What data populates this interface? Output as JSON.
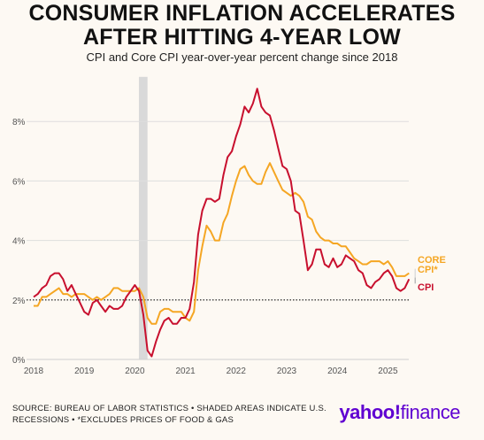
{
  "header": {
    "title_line1": "CONSUMER INFLATION ACCELERATES",
    "title_line2": "AFTER HITTING 4-YEAR LOW",
    "subtitle": "CPI and Core CPI year-over-year percent change since 2018"
  },
  "footer": {
    "source_line1": "SOURCE: BUREAU OF LABOR STATISTICS • SHADED AREAS INDICATE U.S.",
    "source_line2": "RECESSIONS • *EXCLUDES PRICES OF FOOD & GAS",
    "brand_main": "yahoo!",
    "brand_sub": "finance"
  },
  "colors": {
    "cpi": "#c8102e",
    "core": "#f5a623",
    "recession": "#d9d9d9",
    "reference": "#111111",
    "grid": "#dedede",
    "brand": "#5f01d1"
  },
  "chart_data": {
    "type": "line",
    "x_unit": "year",
    "x_ticks": [
      "2018",
      "2019",
      "2020",
      "2021",
      "2022",
      "2023",
      "2024",
      "2025"
    ],
    "y_ticks": [
      "0%",
      "2%",
      "4%",
      "6%",
      "8%"
    ],
    "ylim": [
      0,
      9.5
    ],
    "xlim": [
      2018,
      2025.45
    ],
    "reference_line": {
      "y": 2,
      "style": "dotted"
    },
    "recession": {
      "start": 2020.08,
      "end": 2020.25
    },
    "grid": "horizontal",
    "series": [
      {
        "name": "CPI",
        "color": "#c8102e",
        "x": [
          2018.0,
          2018.083,
          2018.167,
          2018.25,
          2018.333,
          2018.417,
          2018.5,
          2018.583,
          2018.667,
          2018.75,
          2018.833,
          2018.917,
          2019.0,
          2019.083,
          2019.167,
          2019.25,
          2019.333,
          2019.417,
          2019.5,
          2019.583,
          2019.667,
          2019.75,
          2019.833,
          2019.917,
          2020.0,
          2020.083,
          2020.167,
          2020.25,
          2020.333,
          2020.417,
          2020.5,
          2020.583,
          2020.667,
          2020.75,
          2020.833,
          2020.917,
          2021.0,
          2021.083,
          2021.167,
          2021.25,
          2021.333,
          2021.417,
          2021.5,
          2021.583,
          2021.667,
          2021.75,
          2021.833,
          2021.917,
          2022.0,
          2022.083,
          2022.167,
          2022.25,
          2022.333,
          2022.417,
          2022.5,
          2022.583,
          2022.667,
          2022.75,
          2022.833,
          2022.917,
          2023.0,
          2023.083,
          2023.167,
          2023.25,
          2023.333,
          2023.417,
          2023.5,
          2023.583,
          2023.667,
          2023.75,
          2023.833,
          2023.917,
          2024.0,
          2024.083,
          2024.167,
          2024.25,
          2024.333,
          2024.417,
          2024.5,
          2024.583,
          2024.667,
          2024.75,
          2024.833,
          2024.917,
          2025.0,
          2025.083,
          2025.167,
          2025.25,
          2025.333,
          2025.417
        ],
        "values": [
          2.1,
          2.2,
          2.4,
          2.5,
          2.8,
          2.9,
          2.9,
          2.7,
          2.3,
          2.5,
          2.2,
          1.9,
          1.6,
          1.5,
          1.9,
          2.0,
          1.8,
          1.6,
          1.8,
          1.7,
          1.7,
          1.8,
          2.1,
          2.3,
          2.5,
          2.3,
          1.5,
          0.3,
          0.1,
          0.6,
          1.0,
          1.3,
          1.4,
          1.2,
          1.2,
          1.4,
          1.4,
          1.7,
          2.6,
          4.2,
          5.0,
          5.4,
          5.4,
          5.3,
          5.4,
          6.2,
          6.8,
          7.0,
          7.5,
          7.9,
          8.5,
          8.3,
          8.6,
          9.1,
          8.5,
          8.3,
          8.2,
          7.7,
          7.1,
          6.5,
          6.4,
          6.0,
          5.0,
          4.9,
          4.0,
          3.0,
          3.2,
          3.7,
          3.7,
          3.2,
          3.1,
          3.4,
          3.1,
          3.2,
          3.5,
          3.4,
          3.3,
          3.0,
          2.9,
          2.5,
          2.4,
          2.6,
          2.7,
          2.9,
          3.0,
          2.8,
          2.4,
          2.3,
          2.4,
          2.7
        ]
      },
      {
        "name": "CORE CPI*",
        "color": "#f5a623",
        "x": [
          2018.0,
          2018.083,
          2018.167,
          2018.25,
          2018.333,
          2018.417,
          2018.5,
          2018.583,
          2018.667,
          2018.75,
          2018.833,
          2018.917,
          2019.0,
          2019.083,
          2019.167,
          2019.25,
          2019.333,
          2019.417,
          2019.5,
          2019.583,
          2019.667,
          2019.75,
          2019.833,
          2019.917,
          2020.0,
          2020.083,
          2020.167,
          2020.25,
          2020.333,
          2020.417,
          2020.5,
          2020.583,
          2020.667,
          2020.75,
          2020.833,
          2020.917,
          2021.0,
          2021.083,
          2021.167,
          2021.25,
          2021.333,
          2021.417,
          2021.5,
          2021.583,
          2021.667,
          2021.75,
          2021.833,
          2021.917,
          2022.0,
          2022.083,
          2022.167,
          2022.25,
          2022.333,
          2022.417,
          2022.5,
          2022.583,
          2022.667,
          2022.75,
          2022.833,
          2022.917,
          2023.0,
          2023.083,
          2023.167,
          2023.25,
          2023.333,
          2023.417,
          2023.5,
          2023.583,
          2023.667,
          2023.75,
          2023.833,
          2023.917,
          2024.0,
          2024.083,
          2024.167,
          2024.25,
          2024.333,
          2024.417,
          2024.5,
          2024.583,
          2024.667,
          2024.75,
          2024.833,
          2024.917,
          2025.0,
          2025.083,
          2025.167,
          2025.25,
          2025.333,
          2025.417
        ],
        "values": [
          1.8,
          1.8,
          2.1,
          2.1,
          2.2,
          2.3,
          2.4,
          2.2,
          2.2,
          2.1,
          2.2,
          2.2,
          2.2,
          2.1,
          2.0,
          2.1,
          2.0,
          2.1,
          2.2,
          2.4,
          2.4,
          2.3,
          2.3,
          2.3,
          2.3,
          2.4,
          2.1,
          1.4,
          1.2,
          1.2,
          1.6,
          1.7,
          1.7,
          1.6,
          1.6,
          1.6,
          1.4,
          1.3,
          1.6,
          3.0,
          3.8,
          4.5,
          4.3,
          4.0,
          4.0,
          4.6,
          4.9,
          5.5,
          6.0,
          6.4,
          6.5,
          6.2,
          6.0,
          5.9,
          5.9,
          6.3,
          6.6,
          6.3,
          6.0,
          5.7,
          5.6,
          5.5,
          5.6,
          5.5,
          5.3,
          4.8,
          4.7,
          4.3,
          4.1,
          4.0,
          4.0,
          3.9,
          3.9,
          3.8,
          3.8,
          3.6,
          3.4,
          3.3,
          3.2,
          3.2,
          3.3,
          3.3,
          3.3,
          3.2,
          3.3,
          3.1,
          2.8,
          2.8,
          2.8,
          2.9
        ]
      }
    ]
  }
}
